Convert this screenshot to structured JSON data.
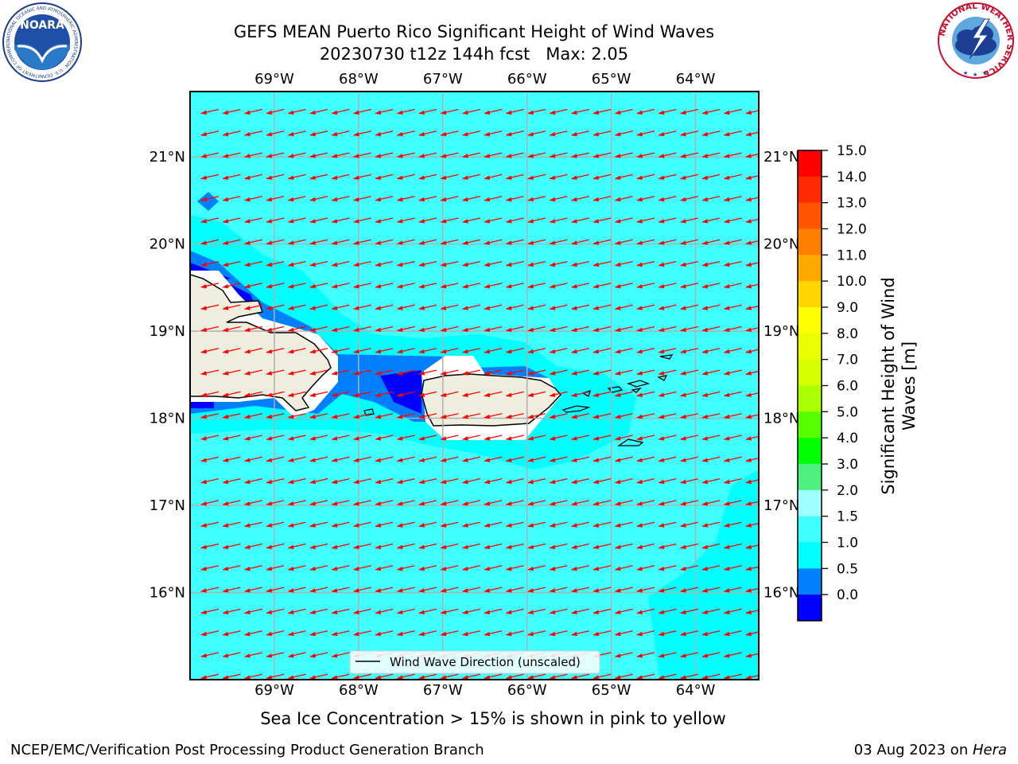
{
  "header": {
    "title_line1": "GEFS MEAN Puerto Rico Significant Height of Wind Waves",
    "title_line2": "20230730 t12z 144h fcst   Max: 2.05"
  },
  "logos": {
    "left": {
      "label": "NOARA",
      "ring_text": "NATIONAL OCEANIC AND ATMOSPHERIC ADMINISTRATION · U.S. DEPARTMENT OF COMMERCE"
    },
    "right": {
      "ring_text": "NATIONAL WEATHER SERVICE"
    }
  },
  "map": {
    "lon_labels": [
      "69°W",
      "68°W",
      "67°W",
      "66°W",
      "65°W",
      "64°W"
    ],
    "lat_labels": [
      "21°N",
      "20°N",
      "19°N",
      "18°N",
      "17°N",
      "16°N"
    ],
    "lon_range": [
      -70.0,
      -63.25
    ],
    "lat_range": [
      15.0,
      21.75
    ],
    "wave_direction": "westward",
    "legend_label": "Wind Wave Direction (unscaled)",
    "colors": {
      "ocean": "#00FFFF",
      "light": "#40FFFF",
      "medium": "#0080FF",
      "dark": "#0000FF",
      "land": "#EFEDDD",
      "arrow": "#FF0000",
      "grid": "#B0B0B0"
    }
  },
  "colorbar": {
    "ticks": [
      "15.0",
      "14.0",
      "13.0",
      "12.0",
      "11.0",
      "10.0",
      "9.0",
      "8.0",
      "7.0",
      "6.0",
      "5.0",
      "4.0",
      "3.0",
      "2.0",
      "1.5",
      "1.0",
      "0.5",
      "0.0"
    ],
    "colors_top_to_bottom": [
      "#FF0000",
      "#FF2A00",
      "#FF5500",
      "#FF8000",
      "#FFAA00",
      "#FFD500",
      "#FFFF00",
      "#EAFF00",
      "#D5FF00",
      "#AAFF00",
      "#55FF00",
      "#00FF00",
      "#50F080",
      "#A0FFFF",
      "#40FFFF",
      "#00FFFF",
      "#0080FF",
      "#0000FF"
    ],
    "label_line1": "Significant Height of Wind",
    "label_line2": "Waves [m]"
  },
  "notes": {
    "sea_ice": "Sea Ice Concentration > 15% is shown in pink to yellow"
  },
  "footer": {
    "left": "NCEP/EMC/Verification Post Processing Product Generation Branch",
    "date": "03 Aug 2023 on ",
    "host": "Hera"
  }
}
